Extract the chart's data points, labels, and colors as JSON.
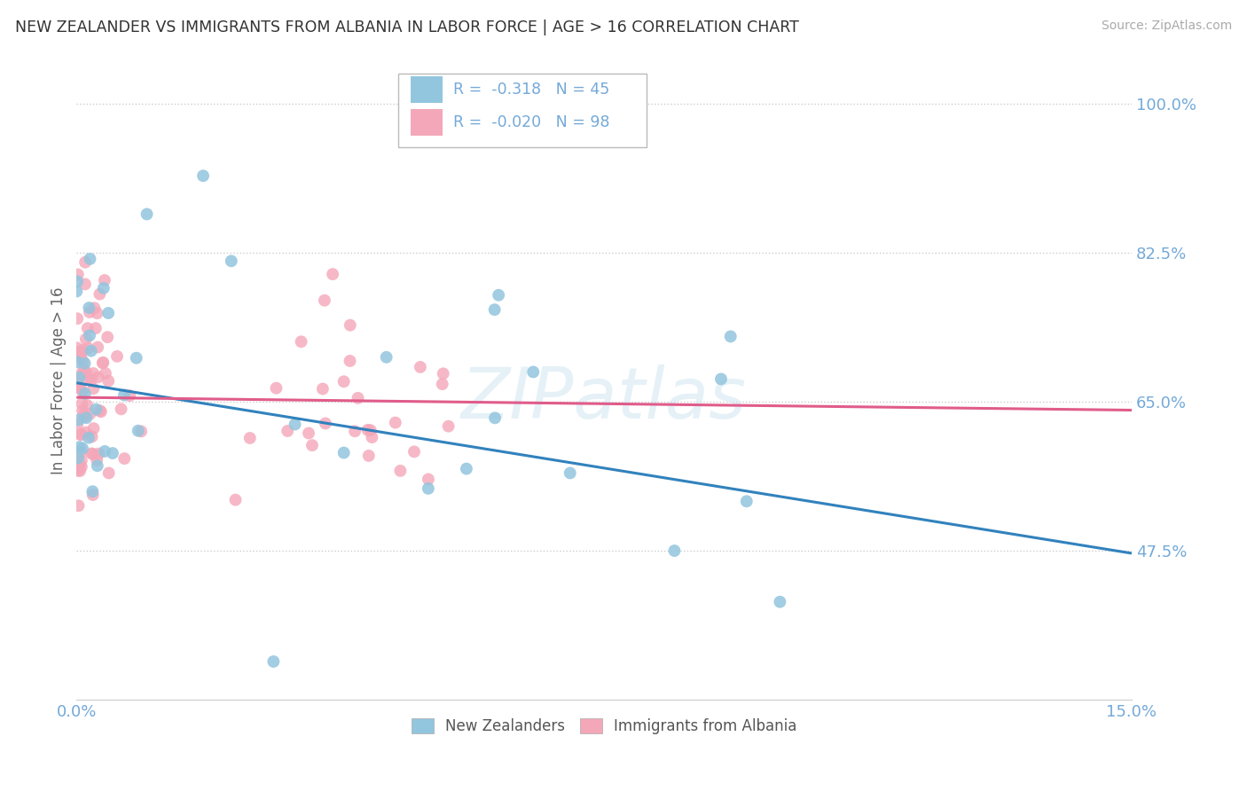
{
  "title": "NEW ZEALANDER VS IMMIGRANTS FROM ALBANIA IN LABOR FORCE | AGE > 16 CORRELATION CHART",
  "source": "Source: ZipAtlas.com",
  "ylabel": "In Labor Force | Age > 16",
  "xlim": [
    0.0,
    0.15
  ],
  "ylim": [
    0.3,
    1.05
  ],
  "yticks": [
    0.475,
    0.65,
    0.825,
    1.0
  ],
  "ytick_labels": [
    "47.5%",
    "65.0%",
    "82.5%",
    "100.0%"
  ],
  "xtick_labels_edge": [
    "0.0%",
    "15.0%"
  ],
  "blue_R": "-0.318",
  "blue_N": "45",
  "pink_R": "-0.020",
  "pink_N": "98",
  "blue_color": "#92c5de",
  "pink_color": "#f4a7b9",
  "blue_line_color": "#3182bd",
  "pink_line_color": "#e05c8a",
  "legend_blue_label": "New Zealanders",
  "legend_pink_label": "Immigrants from Albania",
  "watermark": "ZIPatlas",
  "background_color": "#ffffff",
  "grid_color": "#cccccc",
  "tick_label_color": "#74a9d8",
  "axis_label_color": "#666666",
  "blue_line_y0": 0.672,
  "blue_line_y1": 0.472,
  "pink_line_y0": 0.655,
  "pink_line_y1": 0.64
}
